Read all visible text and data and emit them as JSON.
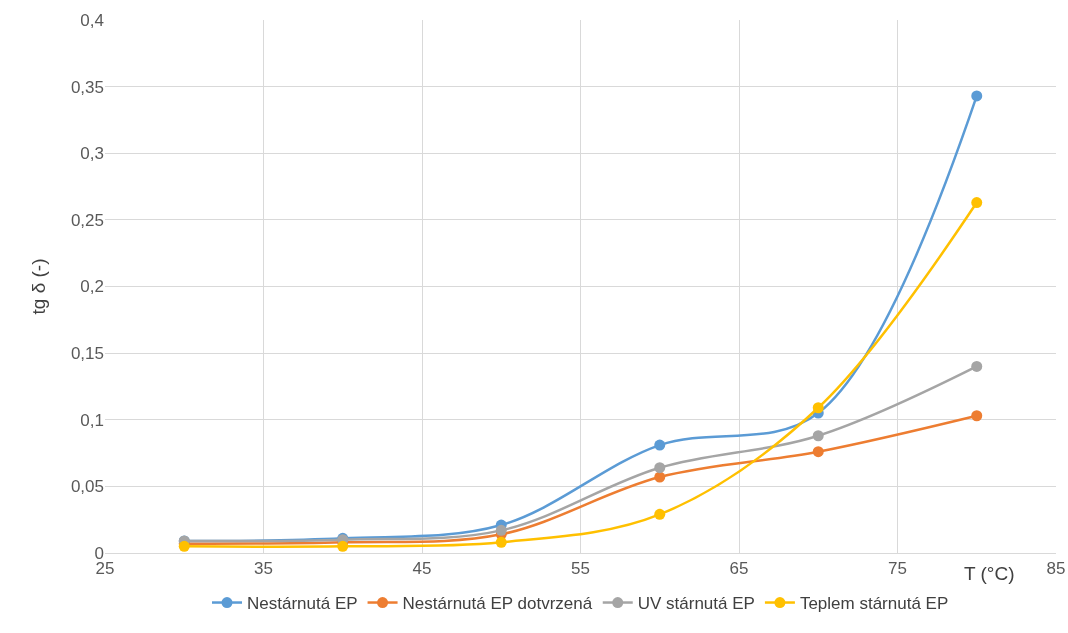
{
  "chart_data": {
    "type": "line",
    "xlabel": "T (°C)",
    "ylabel": "tg δ (-)",
    "series": [
      {
        "name": "Nestárnutá EP",
        "color": "#5b9bd5",
        "x": [
          30,
          40,
          50,
          60,
          70,
          80
        ],
        "values": [
          0.009,
          0.011,
          0.021,
          0.081,
          0.105,
          0.343
        ]
      },
      {
        "name": "Nestárnutá EP dotvrzená",
        "color": "#ed7d31",
        "x": [
          30,
          40,
          50,
          60,
          70,
          80
        ],
        "values": [
          0.007,
          0.008,
          0.014,
          0.057,
          0.076,
          0.103
        ]
      },
      {
        "name": "UV stárnutá EP",
        "color": "#a5a5a5",
        "x": [
          30,
          40,
          50,
          60,
          70,
          80
        ],
        "values": [
          0.009,
          0.01,
          0.017,
          0.064,
          0.088,
          0.14
        ]
      },
      {
        "name": "Teplem stárnutá EP",
        "color": "#ffc000",
        "x": [
          30,
          40,
          50,
          60,
          70,
          80
        ],
        "values": [
          0.005,
          0.005,
          0.008,
          0.029,
          0.109,
          0.263
        ]
      }
    ],
    "xlim": [
      25,
      85
    ],
    "xticks": [
      25,
      35,
      45,
      55,
      65,
      75,
      85
    ],
    "ylim": [
      0,
      0.4
    ],
    "yticks": [
      0,
      {
        "value": 0.05,
        "label": "0,05"
      },
      {
        "value": 0.1,
        "label": "0,1"
      },
      {
        "value": 0.15,
        "label": "0,15"
      },
      {
        "value": 0.2,
        "label": "0,2"
      },
      {
        "value": 0.25,
        "label": "0,25"
      },
      {
        "value": 0.3,
        "label": "0,3"
      },
      {
        "value": 0.35,
        "label": "0,35"
      },
      {
        "value": 0.4,
        "label": "0,4"
      }
    ],
    "grid": true,
    "legend": "bottom",
    "marker": "circle",
    "line_style": "solid"
  }
}
